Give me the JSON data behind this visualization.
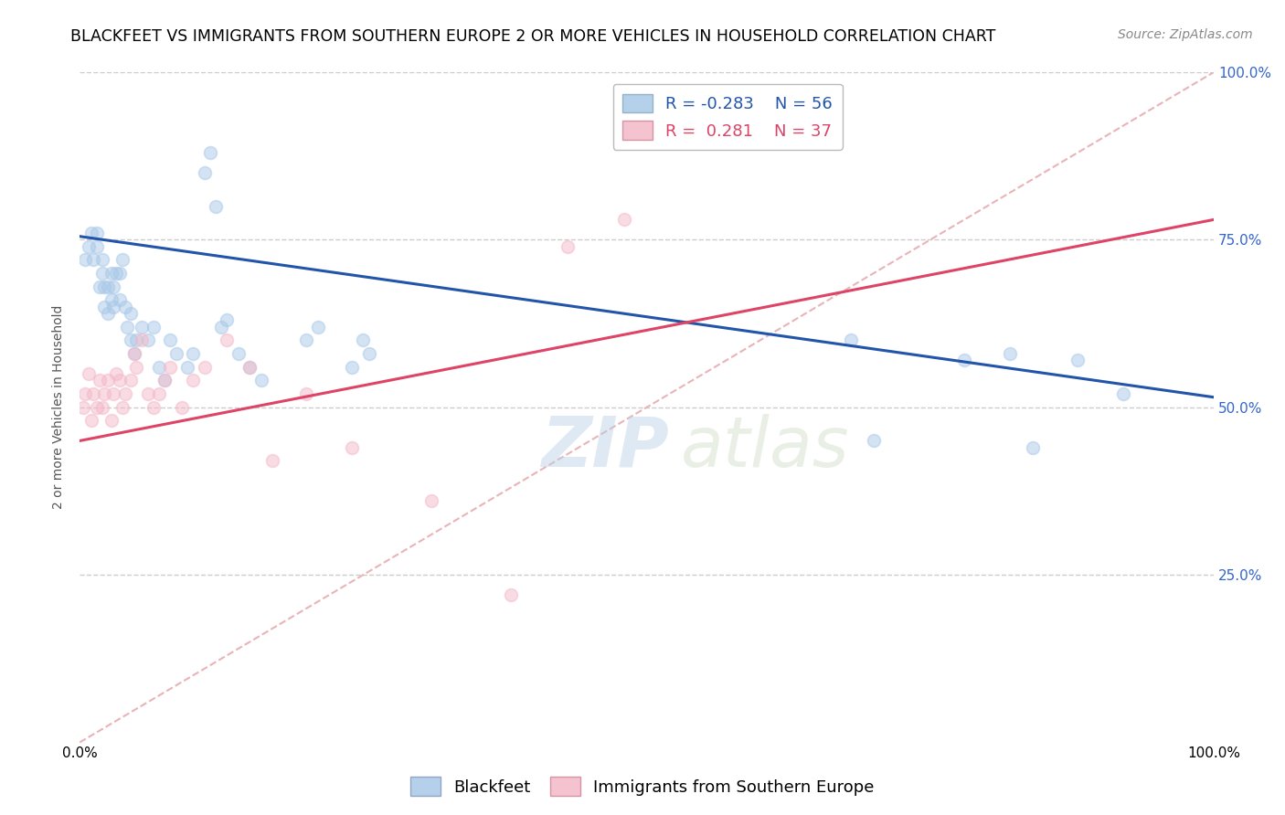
{
  "title": "BLACKFEET VS IMMIGRANTS FROM SOUTHERN EUROPE 2 OR MORE VEHICLES IN HOUSEHOLD CORRELATION CHART",
  "source": "Source: ZipAtlas.com",
  "ylabel": "2 or more Vehicles in Household",
  "xmin": 0.0,
  "xmax": 1.0,
  "ymin": 0.0,
  "ymax": 1.0,
  "ytick_labels": [
    "100.0%",
    "75.0%",
    "50.0%",
    "25.0%"
  ],
  "ytick_values": [
    1.0,
    0.75,
    0.5,
    0.25
  ],
  "grid_color": "#cccccc",
  "blue_color": "#a8c8e8",
  "pink_color": "#f4b8c8",
  "blue_line_color": "#2255aa",
  "pink_line_color": "#dd4466",
  "diagonal_color": "#e8b4b8",
  "watermark_zip": "ZIP",
  "watermark_atlas": "atlas",
  "legend_R_blue": "-0.283",
  "legend_N_blue": "56",
  "legend_R_pink": "0.281",
  "legend_N_pink": "37",
  "blue_scatter_x": [
    0.005,
    0.008,
    0.01,
    0.012,
    0.015,
    0.015,
    0.018,
    0.02,
    0.02,
    0.022,
    0.022,
    0.025,
    0.025,
    0.028,
    0.028,
    0.03,
    0.03,
    0.032,
    0.035,
    0.035,
    0.038,
    0.04,
    0.042,
    0.045,
    0.045,
    0.048,
    0.05,
    0.055,
    0.06,
    0.065,
    0.07,
    0.075,
    0.08,
    0.085,
    0.095,
    0.1,
    0.11,
    0.115,
    0.12,
    0.125,
    0.13,
    0.14,
    0.15,
    0.16,
    0.2,
    0.21,
    0.24,
    0.25,
    0.255,
    0.68,
    0.7,
    0.78,
    0.82,
    0.84,
    0.88,
    0.92
  ],
  "blue_scatter_y": [
    0.72,
    0.74,
    0.76,
    0.72,
    0.74,
    0.76,
    0.68,
    0.7,
    0.72,
    0.65,
    0.68,
    0.64,
    0.68,
    0.66,
    0.7,
    0.65,
    0.68,
    0.7,
    0.66,
    0.7,
    0.72,
    0.65,
    0.62,
    0.6,
    0.64,
    0.58,
    0.6,
    0.62,
    0.6,
    0.62,
    0.56,
    0.54,
    0.6,
    0.58,
    0.56,
    0.58,
    0.85,
    0.88,
    0.8,
    0.62,
    0.63,
    0.58,
    0.56,
    0.54,
    0.6,
    0.62,
    0.56,
    0.6,
    0.58,
    0.6,
    0.45,
    0.57,
    0.58,
    0.44,
    0.57,
    0.52
  ],
  "pink_scatter_x": [
    0.003,
    0.005,
    0.008,
    0.01,
    0.012,
    0.015,
    0.018,
    0.02,
    0.022,
    0.025,
    0.028,
    0.03,
    0.032,
    0.035,
    0.038,
    0.04,
    0.045,
    0.048,
    0.05,
    0.055,
    0.06,
    0.065,
    0.07,
    0.075,
    0.08,
    0.09,
    0.1,
    0.11,
    0.13,
    0.15,
    0.17,
    0.2,
    0.24,
    0.31,
    0.38,
    0.43,
    0.48
  ],
  "pink_scatter_y": [
    0.5,
    0.52,
    0.55,
    0.48,
    0.52,
    0.5,
    0.54,
    0.5,
    0.52,
    0.54,
    0.48,
    0.52,
    0.55,
    0.54,
    0.5,
    0.52,
    0.54,
    0.58,
    0.56,
    0.6,
    0.52,
    0.5,
    0.52,
    0.54,
    0.56,
    0.5,
    0.54,
    0.56,
    0.6,
    0.56,
    0.42,
    0.52,
    0.44,
    0.36,
    0.22,
    0.74,
    0.78
  ],
  "blue_line_x0": 0.0,
  "blue_line_x1": 1.0,
  "blue_line_y0": 0.755,
  "blue_line_y1": 0.515,
  "pink_line_x0": 0.0,
  "pink_line_x1": 1.0,
  "pink_line_y0": 0.45,
  "pink_line_y1": 0.78,
  "title_fontsize": 12.5,
  "source_fontsize": 10,
  "axis_label_fontsize": 10,
  "tick_label_fontsize": 11,
  "legend_fontsize": 13,
  "watermark_zip_fontsize": 55,
  "watermark_atlas_fontsize": 55,
  "marker_size": 100,
  "marker_alpha": 0.5,
  "marker_edge_width": 1.2
}
